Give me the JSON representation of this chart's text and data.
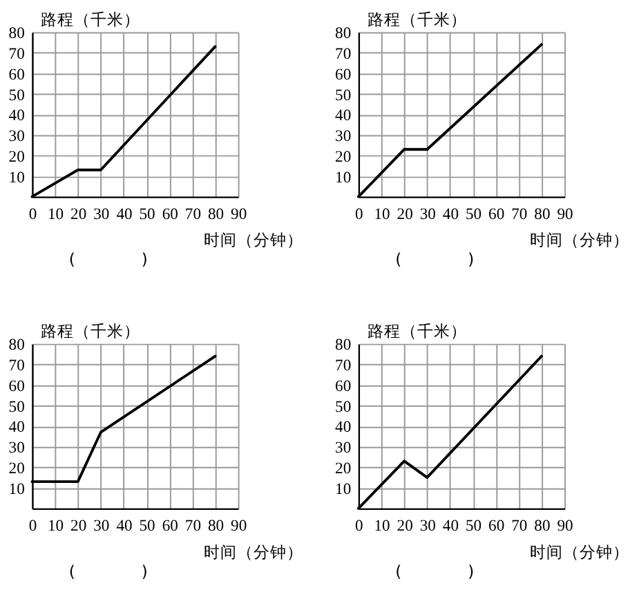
{
  "chart_data": [
    {
      "type": "line",
      "xlabel": "时间（分钟）",
      "ylabel": "路程（千米）",
      "annotations": [
        "(　　　　)"
      ],
      "x": [
        0,
        20,
        30,
        80
      ],
      "values": [
        0,
        13,
        13,
        73
      ],
      "color": "#000000",
      "xlim": [
        0,
        90
      ],
      "ylim": [
        0,
        80
      ],
      "xticks": [
        0,
        10,
        20,
        30,
        40,
        50,
        60,
        70,
        80,
        90
      ],
      "yticks": [
        10,
        20,
        30,
        40,
        50,
        60,
        70,
        80
      ],
      "grid": true,
      "line_style": "solid"
    },
    {
      "type": "line",
      "xlabel": "时间（分钟）",
      "ylabel": "路程（千米）",
      "annotations": [
        "(　　　　)"
      ],
      "x": [
        0,
        20,
        30,
        80
      ],
      "values": [
        0,
        23,
        23,
        74
      ],
      "color": "#000000",
      "xlim": [
        0,
        90
      ],
      "ylim": [
        0,
        80
      ],
      "xticks": [
        0,
        10,
        20,
        30,
        40,
        50,
        60,
        70,
        80,
        90
      ],
      "yticks": [
        10,
        20,
        30,
        40,
        50,
        60,
        70,
        80
      ],
      "grid": true,
      "line_style": "solid"
    },
    {
      "type": "line",
      "xlabel": "时间（分钟）",
      "ylabel": "路程（千米）",
      "annotations": [
        "(　　　　)"
      ],
      "x": [
        0,
        20,
        30,
        80
      ],
      "values": [
        13,
        13,
        37,
        74
      ],
      "color": "#000000",
      "xlim": [
        0,
        90
      ],
      "ylim": [
        0,
        80
      ],
      "xticks": [
        0,
        10,
        20,
        30,
        40,
        50,
        60,
        70,
        80,
        90
      ],
      "yticks": [
        10,
        20,
        30,
        40,
        50,
        60,
        70,
        80
      ],
      "grid": true,
      "line_style": "solid"
    },
    {
      "type": "line",
      "xlabel": "时间（分钟）",
      "ylabel": "路程（千米）",
      "annotations": [
        "(　　　　)"
      ],
      "x": [
        0,
        20,
        30,
        80
      ],
      "values": [
        0,
        23,
        15,
        74
      ],
      "color": "#000000",
      "xlim": [
        0,
        90
      ],
      "ylim": [
        0,
        80
      ],
      "xticks": [
        0,
        10,
        20,
        30,
        40,
        50,
        60,
        70,
        80,
        90
      ],
      "yticks": [
        10,
        20,
        30,
        40,
        50,
        60,
        70,
        80
      ],
      "grid": true,
      "line_style": "solid"
    }
  ]
}
